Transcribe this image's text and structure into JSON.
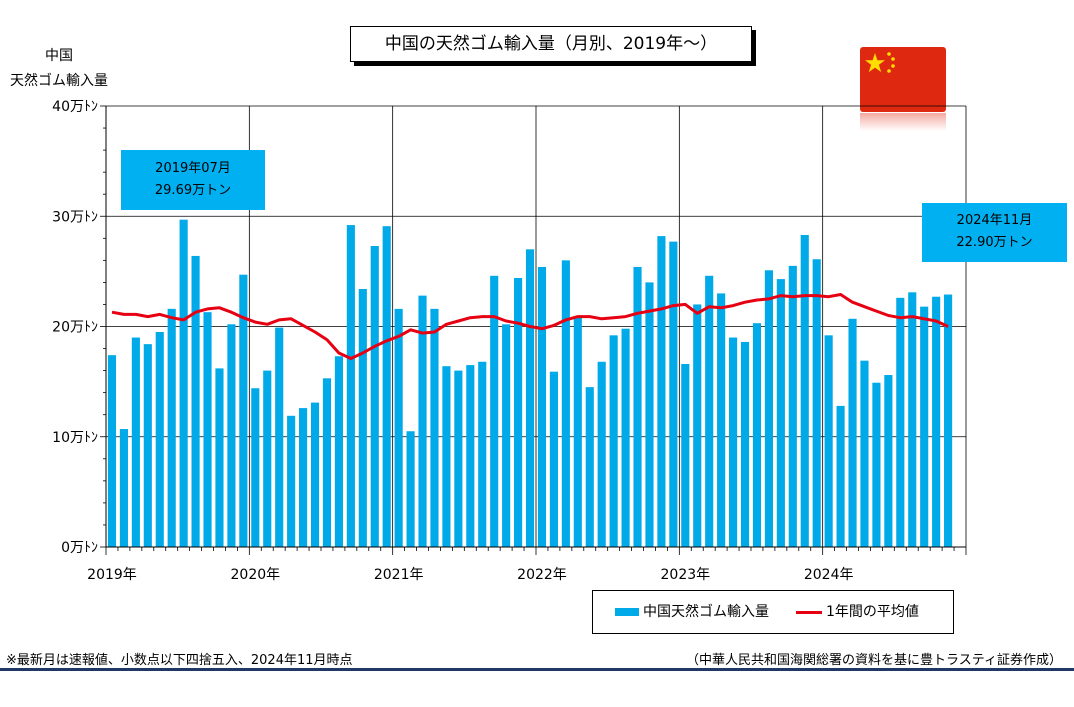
{
  "title": "中国の天然ゴム輸入量（月別、2019年～）",
  "y_axis_title": [
    "中国",
    "天然ゴム輸入量"
  ],
  "callouts": [
    {
      "date": "2019年07月",
      "value_label": "29.69万トン"
    },
    {
      "date": "2024年11月",
      "value_label": "22.90万トン"
    }
  ],
  "legend": {
    "bar_label": "中国天然ゴム輸入量",
    "line_label": "1年間の平均値"
  },
  "notes": {
    "left": "※最新月は速報値、小数点以下四捨五入、2024年11月時点",
    "right": "（中華人民共和国海関総署の資料を基に豊トラスティ証券作成）"
  },
  "colors": {
    "bar": "#00a9e8",
    "line": "#e60012",
    "callout": "#00b0f0",
    "flag": "#de2910",
    "star": "#ffde00"
  },
  "icons": {
    "flag": "china-flag-icon"
  },
  "chart_data": {
    "type": "bar",
    "title": "中国の天然ゴム輸入量（月別、2019年～）",
    "ylabel": "中国 天然ゴム輸入量",
    "ylim": [
      0,
      40
    ],
    "yticks": [
      0,
      10,
      20,
      30,
      40
    ],
    "ytick_labels": [
      "0万ﾄﾝ",
      "10万ﾄﾝ",
      "20万ﾄﾝ",
      "30万ﾄﾝ",
      "40万ﾄﾝ"
    ],
    "xtick_labels": [
      "2019年",
      "2020年",
      "2021年",
      "2022年",
      "2023年",
      "2024年"
    ],
    "start": "2019-01",
    "end": "2024-11",
    "grid": true,
    "legend_position": "bottom-right",
    "series": [
      {
        "name": "中国天然ゴム輸入量",
        "type": "bar",
        "values": [
          17.4,
          10.7,
          19.0,
          18.4,
          19.5,
          21.6,
          29.69,
          26.4,
          21.3,
          16.2,
          20.2,
          24.7,
          14.4,
          16.0,
          19.9,
          11.9,
          12.6,
          13.1,
          15.3,
          17.3,
          29.2,
          23.4,
          27.3,
          29.1,
          21.6,
          10.5,
          22.8,
          21.6,
          16.4,
          16.0,
          16.5,
          16.8,
          24.6,
          20.2,
          24.4,
          27.0,
          25.4,
          15.9,
          26.0,
          20.8,
          14.5,
          16.8,
          19.2,
          19.8,
          25.4,
          24.0,
          28.2,
          27.7,
          16.6,
          22.0,
          24.6,
          23.0,
          19.0,
          18.6,
          20.3,
          25.1,
          24.3,
          25.5,
          28.3,
          26.1,
          19.2,
          12.8,
          20.7,
          16.9,
          14.9,
          15.6,
          22.6,
          23.1,
          21.8,
          22.7,
          22.9
        ]
      },
      {
        "name": "1年間の平均値",
        "type": "line",
        "values": [
          21.3,
          21.1,
          21.1,
          20.9,
          21.1,
          20.8,
          20.6,
          21.3,
          21.6,
          21.7,
          21.3,
          20.8,
          20.4,
          20.2,
          20.6,
          20.7,
          20.1,
          19.5,
          18.8,
          17.6,
          17.1,
          17.6,
          18.2,
          18.7,
          19.1,
          19.7,
          19.4,
          19.5,
          20.2,
          20.5,
          20.8,
          20.9,
          20.9,
          20.5,
          20.3,
          20.0,
          19.8,
          20.1,
          20.6,
          20.9,
          20.9,
          20.7,
          20.8,
          20.9,
          21.2,
          21.4,
          21.6,
          21.9,
          22.0,
          21.2,
          21.8,
          21.7,
          21.9,
          22.2,
          22.4,
          22.5,
          22.8,
          22.7,
          22.8,
          22.8,
          22.7,
          22.9,
          22.2,
          21.8,
          21.4,
          21.0,
          20.8,
          20.9,
          20.7,
          20.5,
          20.0
        ]
      }
    ]
  }
}
